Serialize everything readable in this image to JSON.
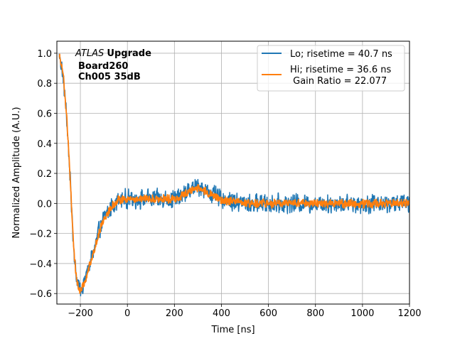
{
  "chart_data": {
    "type": "line",
    "xlabel": "Time [ns]",
    "ylabel": "Normalized Amplitude (A.U.)",
    "xlim": [
      -300,
      1200
    ],
    "ylim": [
      -0.67,
      1.08
    ],
    "grid": true,
    "xticks": [
      -200,
      0,
      200,
      400,
      600,
      800,
      1000,
      1200
    ],
    "xtick_labels": [
      "−200",
      "0",
      "200",
      "400",
      "600",
      "800",
      "1000",
      "1200"
    ],
    "yticks": [
      -0.6,
      -0.4,
      -0.2,
      0.0,
      0.2,
      0.4,
      0.6,
      0.8,
      1.0
    ],
    "ytick_labels": [
      "−0.6",
      "−0.4",
      "−0.2",
      "0.0",
      "0.2",
      "0.4",
      "0.6",
      "0.8",
      "1.0"
    ],
    "annotation": {
      "line1_italic": "ATLAS",
      "line1_bold": "Upgrade",
      "line2": "Board260",
      "line3": "Ch005 35dB"
    },
    "legend_position": "upper right",
    "series": [
      {
        "name": "Lo; risetime = 40.7 ns",
        "color": "#1f77b4",
        "noise": 0.045,
        "x": [
          -290,
          -280,
          -270,
          -260,
          -250,
          -240,
          -230,
          -220,
          -210,
          -200,
          -190,
          -180,
          -170,
          -160,
          -150,
          -140,
          -130,
          -120,
          -110,
          -100,
          -80,
          -60,
          -40,
          -20,
          0,
          50,
          100,
          150,
          200,
          230,
          260,
          290,
          310,
          330,
          360,
          400,
          450,
          500,
          600,
          700,
          800,
          900,
          1000,
          1100,
          1200
        ],
        "y": [
          0.98,
          0.92,
          0.78,
          0.6,
          0.35,
          0.05,
          -0.25,
          -0.45,
          -0.55,
          -0.57,
          -0.55,
          -0.5,
          -0.45,
          -0.4,
          -0.35,
          -0.3,
          -0.24,
          -0.18,
          -0.14,
          -0.1,
          -0.05,
          -0.01,
          0.02,
          0.03,
          0.03,
          0.03,
          0.03,
          0.03,
          0.03,
          0.05,
          0.08,
          0.11,
          0.11,
          0.09,
          0.06,
          0.03,
          0.01,
          0.0,
          0.0,
          0.0,
          0.0,
          0.0,
          0.0,
          0.0,
          0.0
        ]
      },
      {
        "name": "Hi; risetime = 36.6 ns\n Gain Ratio = 22.077",
        "color": "#ff7f0e",
        "noise": 0.02,
        "x": [
          -290,
          -280,
          -270,
          -260,
          -250,
          -240,
          -230,
          -220,
          -210,
          -200,
          -190,
          -180,
          -170,
          -160,
          -150,
          -140,
          -130,
          -120,
          -110,
          -100,
          -80,
          -60,
          -40,
          -20,
          0,
          50,
          100,
          150,
          200,
          230,
          260,
          290,
          310,
          330,
          360,
          400,
          450,
          500,
          600,
          700,
          800,
          900,
          1000,
          1100,
          1200
        ],
        "y": [
          0.99,
          0.93,
          0.8,
          0.62,
          0.37,
          0.06,
          -0.25,
          -0.46,
          -0.56,
          -0.58,
          -0.56,
          -0.51,
          -0.46,
          -0.41,
          -0.36,
          -0.3,
          -0.25,
          -0.19,
          -0.14,
          -0.1,
          -0.05,
          -0.01,
          0.02,
          0.03,
          0.03,
          0.03,
          0.03,
          0.03,
          0.03,
          0.05,
          0.08,
          0.1,
          0.1,
          0.08,
          0.05,
          0.02,
          0.01,
          0.0,
          0.0,
          0.0,
          0.0,
          0.0,
          0.0,
          0.0,
          0.0
        ]
      }
    ]
  }
}
